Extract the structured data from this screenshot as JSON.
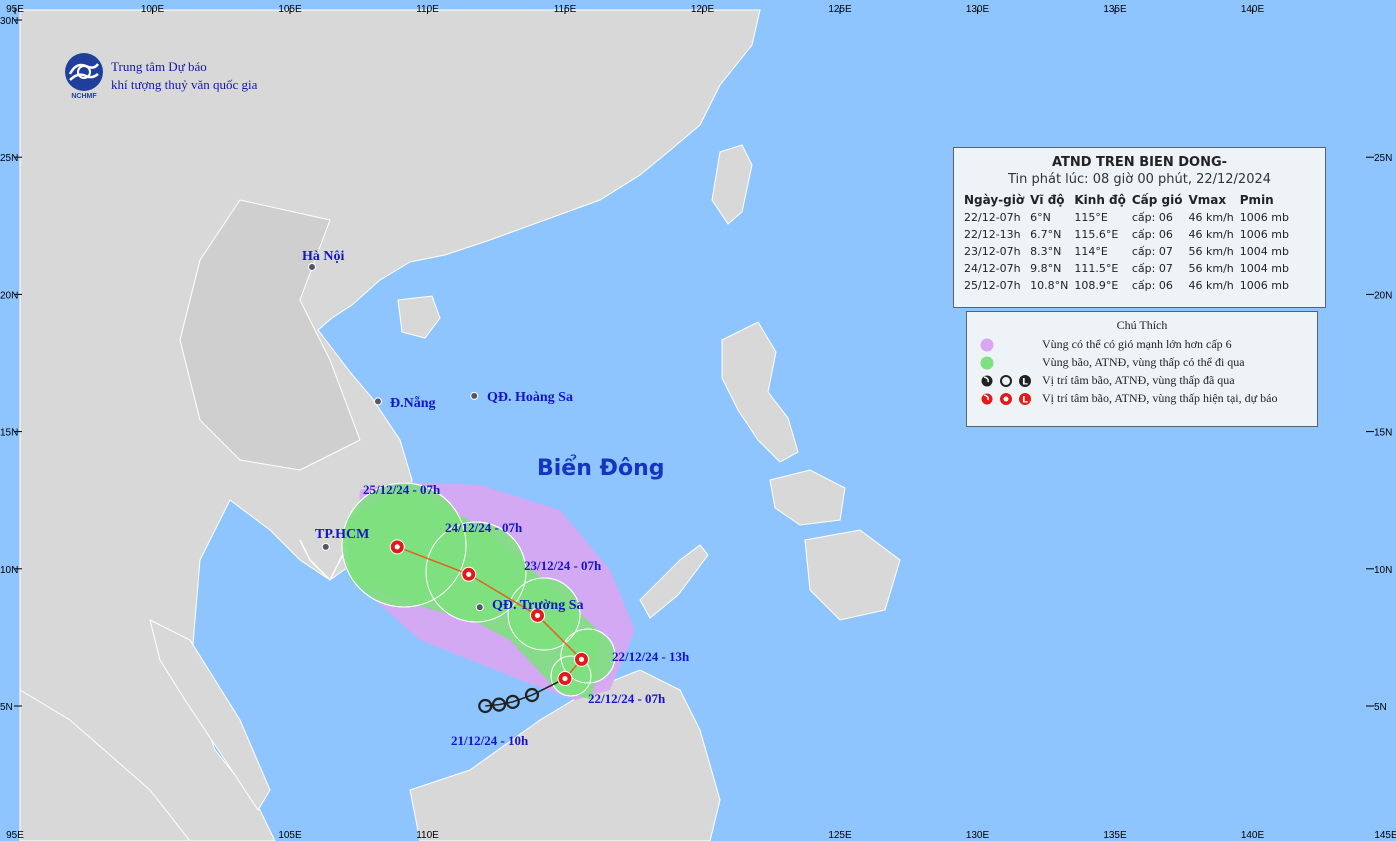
{
  "header": {
    "org_line1": "Trung tâm Dự báo",
    "org_line2": "khí tượng thuỷ văn quốc gia",
    "logo_text": "NCHMF"
  },
  "map": {
    "sea_label": "Biển Đông",
    "top_longitude_ticks": [
      "95E",
      "100E",
      "105E",
      "110E",
      "115E",
      "120E",
      "125E",
      "130E",
      "135E",
      "140E"
    ],
    "bottom_longitude_ticks": [
      "95E",
      "105E",
      "110E",
      "125E",
      "130E",
      "135E",
      "140E",
      "145E"
    ],
    "left_latitude_ticks": [
      "30N",
      "25N",
      "20N",
      "15N",
      "10N",
      "5N"
    ],
    "right_latitude_ticks": [
      "25N",
      "20N",
      "15N",
      "10N",
      "5N"
    ],
    "places": [
      {
        "name": "Hà Nội",
        "lat": 21.0,
        "lon": 105.8
      },
      {
        "name": "Đ.Nẵng",
        "lat": 16.1,
        "lon": 108.2
      },
      {
        "name": "QĐ. Hoàng Sa",
        "lat": 16.3,
        "lon": 111.7
      },
      {
        "name": "TP.HCM",
        "lat": 10.8,
        "lon": 106.3
      },
      {
        "name": "QĐ. Trường Sa",
        "lat": 8.6,
        "lon": 111.9
      }
    ],
    "track_labels": {
      "t0": "25/12/24 - 07h",
      "t1": "24/12/24 - 07h",
      "t2": "23/12/24 - 07h",
      "t3": "22/12/24 - 13h",
      "t4": "22/12/24 - 07h",
      "past": "21/12/24 - 10h"
    },
    "forecast_track": [
      {
        "lat": 6.0,
        "lon": 115.0
      },
      {
        "lat": 6.7,
        "lon": 115.6
      },
      {
        "lat": 8.3,
        "lon": 114.0
      },
      {
        "lat": 9.8,
        "lon": 111.5
      },
      {
        "lat": 10.8,
        "lon": 108.9
      }
    ],
    "past_track": [
      {
        "lat": 5.0,
        "lon": 112.1
      },
      {
        "lat": 5.05,
        "lon": 112.6
      },
      {
        "lat": 5.15,
        "lon": 113.1
      },
      {
        "lat": 5.4,
        "lon": 113.8
      }
    ]
  },
  "info_box": {
    "title": "ATND TREN BIEN DONG-",
    "issued": "Tin phát lúc: 08 giờ 00 phút, 22/12/2024",
    "columns": [
      "Ngày-giờ",
      "Vĩ độ",
      "Kinh độ",
      "Cấp gió",
      "Vmax",
      "Pmin"
    ],
    "rows": [
      [
        "22/12-07h",
        "6°N",
        "115°E",
        "cấp: 06",
        "46 km/h",
        "1006 mb"
      ],
      [
        "22/12-13h",
        "6.7°N",
        "115.6°E",
        "cấp: 06",
        "46 km/h",
        "1006 mb"
      ],
      [
        "23/12-07h",
        "8.3°N",
        "114°E",
        "cấp: 07",
        "56 km/h",
        "1004 mb"
      ],
      [
        "24/12-07h",
        "9.8°N",
        "111.5°E",
        "cấp: 07",
        "56 km/h",
        "1004 mb"
      ],
      [
        "25/12-07h",
        "10.8°N",
        "108.9°E",
        "cấp: 06",
        "46 km/h",
        "1006 mb"
      ]
    ]
  },
  "legend": {
    "title": "Chú Thích",
    "items": [
      "Vùng có thể có gió mạnh lớn hơn cấp 6",
      "Vùng bão, ATNĐ, vùng thấp có thể đi qua",
      "Vị trí tâm bão, ATNĐ, vùng thấp đã qua",
      "Vị trí tâm bão, ATNĐ, vùng thấp hiện tại, dự báo"
    ]
  },
  "colors": {
    "sea": "#8ec5ff",
    "land": "#d8d8d8",
    "wind_zone": "#d9a6f2",
    "track_zone": "#7ee07e",
    "forecast_marker": "#e21a1a",
    "label_text": "#1515c8"
  }
}
